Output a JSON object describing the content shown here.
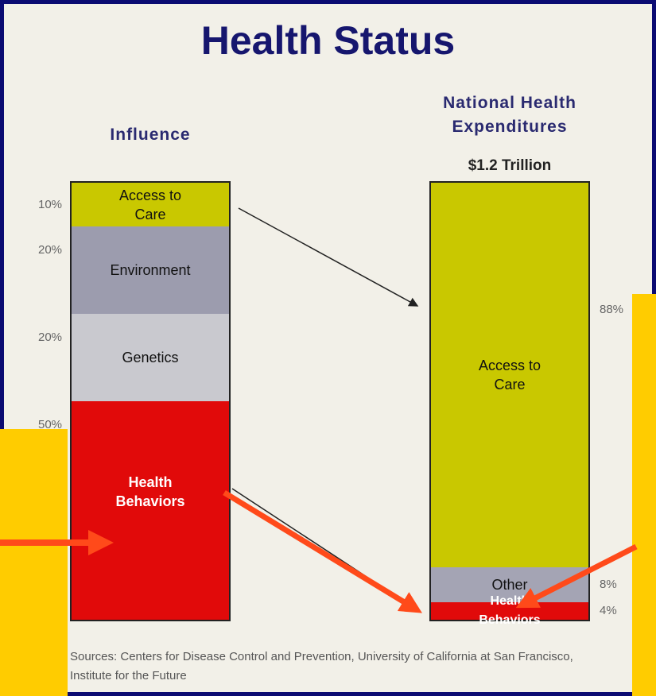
{
  "title": "Health Status",
  "chart_data": [
    {
      "type": "stacked_bar",
      "title": "Influence",
      "categories": [
        "Access to Care",
        "Environment",
        "Genetics",
        "Health Behaviors"
      ],
      "values": [
        10,
        20,
        20,
        50
      ],
      "value_labels": [
        "10%",
        "20%",
        "20%",
        "50%"
      ],
      "colors": [
        "#c9c800",
        "#9c9cae",
        "#c9c9cf",
        "#e10a0a"
      ]
    },
    {
      "type": "stacked_bar",
      "title": "National Health Expenditures",
      "subtitle": "$1.2 Trillion",
      "categories": [
        "Access to Care",
        "Other",
        "Health Behaviors"
      ],
      "values": [
        88,
        8,
        4
      ],
      "value_labels": [
        "88%",
        "8%",
        "4%"
      ],
      "colors": [
        "#c9c800",
        "#a4a4b4",
        "#e10a0a"
      ]
    }
  ],
  "source": "Sources: Centers for Disease Control and Prevention, University of California at San Francisco, Institute for the Future"
}
